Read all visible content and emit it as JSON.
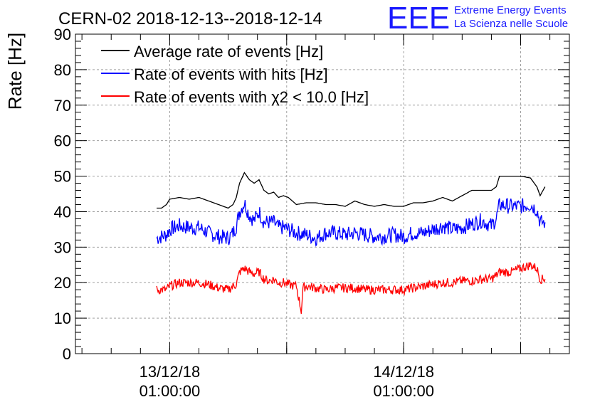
{
  "chart_data": {
    "type": "line",
    "title": "CERN-02 2018-12-13--2018-12-14",
    "ylabel": "Rate [Hz]",
    "xlabel": "",
    "ylim": [
      0,
      90
    ],
    "yticks": [
      0,
      10,
      20,
      30,
      40,
      50,
      60,
      70,
      80,
      90
    ],
    "x_start": "2018-12-12 15:20",
    "x_end": "2018-12-14 18:00",
    "xticks": [
      {
        "time": "2018-12-13 01:00",
        "line1": "13/12/18",
        "line2": "01:00:00"
      },
      {
        "time": "2018-12-14 01:00",
        "line1": "14/12/18",
        "line2": "01:00:00"
      }
    ],
    "grid": true,
    "legend_position": "top-left",
    "series": [
      {
        "name": "Average rate of events [Hz]",
        "color": "#000000",
        "points": [
          [
            "2018-12-12 23:40",
            41
          ],
          [
            "2018-12-13 00:10",
            41
          ],
          [
            "2018-12-13 00:40",
            42
          ],
          [
            "2018-12-13 01:00",
            43.5
          ],
          [
            "2018-12-13 02:00",
            44
          ],
          [
            "2018-12-13 03:00",
            43.5
          ],
          [
            "2018-12-13 04:00",
            44
          ],
          [
            "2018-12-13 05:00",
            43
          ],
          [
            "2018-12-13 06:00",
            42
          ],
          [
            "2018-12-13 07:00",
            41
          ],
          [
            "2018-12-13 07:30",
            42
          ],
          [
            "2018-12-13 07:50",
            44
          ],
          [
            "2018-12-13 08:10",
            48
          ],
          [
            "2018-12-13 08:40",
            51
          ],
          [
            "2018-12-13 09:10",
            49
          ],
          [
            "2018-12-13 09:40",
            48
          ],
          [
            "2018-12-13 10:10",
            49
          ],
          [
            "2018-12-13 10:40",
            46
          ],
          [
            "2018-12-13 11:10",
            45
          ],
          [
            "2018-12-13 11:40",
            45.5
          ],
          [
            "2018-12-13 12:10",
            44
          ],
          [
            "2018-12-13 12:40",
            44.5
          ],
          [
            "2018-12-13 13:10",
            44
          ],
          [
            "2018-12-13 14:00",
            42
          ],
          [
            "2018-12-13 15:00",
            42.5
          ],
          [
            "2018-12-13 16:00",
            42.5
          ],
          [
            "2018-12-13 17:00",
            42
          ],
          [
            "2018-12-13 18:00",
            42
          ],
          [
            "2018-12-13 19:00",
            41.5
          ],
          [
            "2018-12-13 20:00",
            43
          ],
          [
            "2018-12-13 21:00",
            42
          ],
          [
            "2018-12-13 22:00",
            41.5
          ],
          [
            "2018-12-13 23:00",
            42
          ],
          [
            "2018-12-14 00:00",
            41.5
          ],
          [
            "2018-12-14 01:00",
            41.5
          ],
          [
            "2018-12-14 02:00",
            42.5
          ],
          [
            "2018-12-14 03:00",
            42.5
          ],
          [
            "2018-12-14 04:00",
            43
          ],
          [
            "2018-12-14 05:00",
            44
          ],
          [
            "2018-12-14 06:00",
            43
          ],
          [
            "2018-12-14 07:00",
            44.5
          ],
          [
            "2018-12-14 08:00",
            46
          ],
          [
            "2018-12-14 09:00",
            46
          ],
          [
            "2018-12-14 10:00",
            46
          ],
          [
            "2018-12-14 10:30",
            47
          ],
          [
            "2018-12-14 10:50",
            50
          ],
          [
            "2018-12-14 12:00",
            50
          ],
          [
            "2018-12-14 13:00",
            50
          ],
          [
            "2018-12-14 14:00",
            49.5
          ],
          [
            "2018-12-14 14:40",
            47
          ],
          [
            "2018-12-14 15:00",
            44.5
          ],
          [
            "2018-12-14 15:30",
            47
          ]
        ]
      },
      {
        "name": "Rate of events with hits [Hz]",
        "color": "#0000ff",
        "points": [
          [
            "2018-12-12 23:40",
            32.5
          ],
          [
            "2018-12-13 00:10",
            33
          ],
          [
            "2018-12-13 00:40",
            33.5
          ],
          [
            "2018-12-13 01:00",
            35
          ],
          [
            "2018-12-13 02:00",
            36
          ],
          [
            "2018-12-13 03:00",
            35.5
          ],
          [
            "2018-12-13 04:00",
            35.5
          ],
          [
            "2018-12-13 05:00",
            34
          ],
          [
            "2018-12-13 06:00",
            33
          ],
          [
            "2018-12-13 07:00",
            32.5
          ],
          [
            "2018-12-13 07:30",
            34
          ],
          [
            "2018-12-13 07:50",
            36
          ],
          [
            "2018-12-13 08:10",
            40
          ],
          [
            "2018-12-13 08:40",
            42.5
          ],
          [
            "2018-12-13 09:10",
            39
          ],
          [
            "2018-12-13 09:40",
            37.5
          ],
          [
            "2018-12-13 10:10",
            40
          ],
          [
            "2018-12-13 10:40",
            37
          ],
          [
            "2018-12-13 11:10",
            37
          ],
          [
            "2018-12-13 11:40",
            37
          ],
          [
            "2018-12-13 12:10",
            35.5
          ],
          [
            "2018-12-13 12:40",
            35.5
          ],
          [
            "2018-12-13 13:10",
            35
          ],
          [
            "2018-12-13 14:00",
            34
          ],
          [
            "2018-12-13 15:00",
            33.5
          ],
          [
            "2018-12-13 16:00",
            32.5
          ],
          [
            "2018-12-13 17:00",
            34
          ],
          [
            "2018-12-13 18:00",
            34
          ],
          [
            "2018-12-13 19:00",
            33.5
          ],
          [
            "2018-12-13 20:00",
            34
          ],
          [
            "2018-12-13 21:00",
            33.5
          ],
          [
            "2018-12-13 22:00",
            33
          ],
          [
            "2018-12-13 23:00",
            33
          ],
          [
            "2018-12-14 00:00",
            33.5
          ],
          [
            "2018-12-14 01:00",
            33
          ],
          [
            "2018-12-14 02:00",
            34
          ],
          [
            "2018-12-14 03:00",
            34
          ],
          [
            "2018-12-14 04:00",
            35
          ],
          [
            "2018-12-14 05:00",
            36
          ],
          [
            "2018-12-14 06:00",
            35
          ],
          [
            "2018-12-14 07:00",
            35.5
          ],
          [
            "2018-12-14 08:00",
            36.5
          ],
          [
            "2018-12-14 09:00",
            37.5
          ],
          [
            "2018-12-14 10:00",
            36
          ],
          [
            "2018-12-14 10:30",
            38
          ],
          [
            "2018-12-14 10:50",
            42
          ],
          [
            "2018-12-14 12:00",
            41.5
          ],
          [
            "2018-12-14 13:00",
            41.5
          ],
          [
            "2018-12-14 14:00",
            42
          ],
          [
            "2018-12-14 14:40",
            40.5
          ],
          [
            "2018-12-14 15:00",
            37
          ],
          [
            "2018-12-14 15:30",
            37
          ]
        ]
      },
      {
        "name": "Rate of events with χ2 < 10.0 [Hz]",
        "color": "#ff0000",
        "points": [
          [
            "2018-12-12 23:40",
            18
          ],
          [
            "2018-12-13 00:10",
            18
          ],
          [
            "2018-12-13 00:40",
            18
          ],
          [
            "2018-12-13 01:00",
            19
          ],
          [
            "2018-12-13 02:00",
            20
          ],
          [
            "2018-12-13 03:00",
            20
          ],
          [
            "2018-12-13 04:00",
            20
          ],
          [
            "2018-12-13 05:00",
            19.5
          ],
          [
            "2018-12-13 06:00",
            18.5
          ],
          [
            "2018-12-13 07:00",
            18
          ],
          [
            "2018-12-13 07:30",
            19
          ],
          [
            "2018-12-13 07:50",
            19.5
          ],
          [
            "2018-12-13 08:10",
            23
          ],
          [
            "2018-12-13 08:40",
            24
          ],
          [
            "2018-12-13 09:10",
            23
          ],
          [
            "2018-12-13 09:40",
            22.5
          ],
          [
            "2018-12-13 10:10",
            23
          ],
          [
            "2018-12-13 10:40",
            21
          ],
          [
            "2018-12-13 11:10",
            20.5
          ],
          [
            "2018-12-13 11:40",
            21
          ],
          [
            "2018-12-13 12:10",
            20
          ],
          [
            "2018-12-13 12:40",
            20
          ],
          [
            "2018-12-13 13:10",
            19.5
          ],
          [
            "2018-12-13 14:00",
            19
          ],
          [
            "2018-12-13 14:30",
            12
          ],
          [
            "2018-12-13 14:40",
            18.5
          ],
          [
            "2018-12-13 15:00",
            19
          ],
          [
            "2018-12-13 16:00",
            18.5
          ],
          [
            "2018-12-13 17:00",
            18
          ],
          [
            "2018-12-13 18:00",
            18.5
          ],
          [
            "2018-12-13 19:00",
            18.5
          ],
          [
            "2018-12-13 20:00",
            18.5
          ],
          [
            "2018-12-13 21:00",
            18
          ],
          [
            "2018-12-13 22:00",
            18
          ],
          [
            "2018-12-13 23:00",
            18
          ],
          [
            "2018-12-14 00:00",
            18
          ],
          [
            "2018-12-14 01:00",
            18
          ],
          [
            "2018-12-14 02:00",
            18.5
          ],
          [
            "2018-12-14 03:00",
            19
          ],
          [
            "2018-12-14 04:00",
            19.5
          ],
          [
            "2018-12-14 05:00",
            20
          ],
          [
            "2018-12-14 06:00",
            20
          ],
          [
            "2018-12-14 07:00",
            20.5
          ],
          [
            "2018-12-14 08:00",
            20.5
          ],
          [
            "2018-12-14 09:00",
            21
          ],
          [
            "2018-12-14 10:00",
            21
          ],
          [
            "2018-12-14 10:30",
            22
          ],
          [
            "2018-12-14 10:50",
            23
          ],
          [
            "2018-12-14 12:00",
            23
          ],
          [
            "2018-12-14 13:00",
            24
          ],
          [
            "2018-12-14 14:00",
            25
          ],
          [
            "2018-12-14 14:40",
            24
          ],
          [
            "2018-12-14 15:00",
            21
          ],
          [
            "2018-12-14 15:30",
            21
          ]
        ]
      }
    ]
  },
  "logo": {
    "mark": "EEE",
    "line1": "Extreme Energy Events",
    "line2": "La Scienza nelle Scuole",
    "color": "#1a1aff"
  }
}
